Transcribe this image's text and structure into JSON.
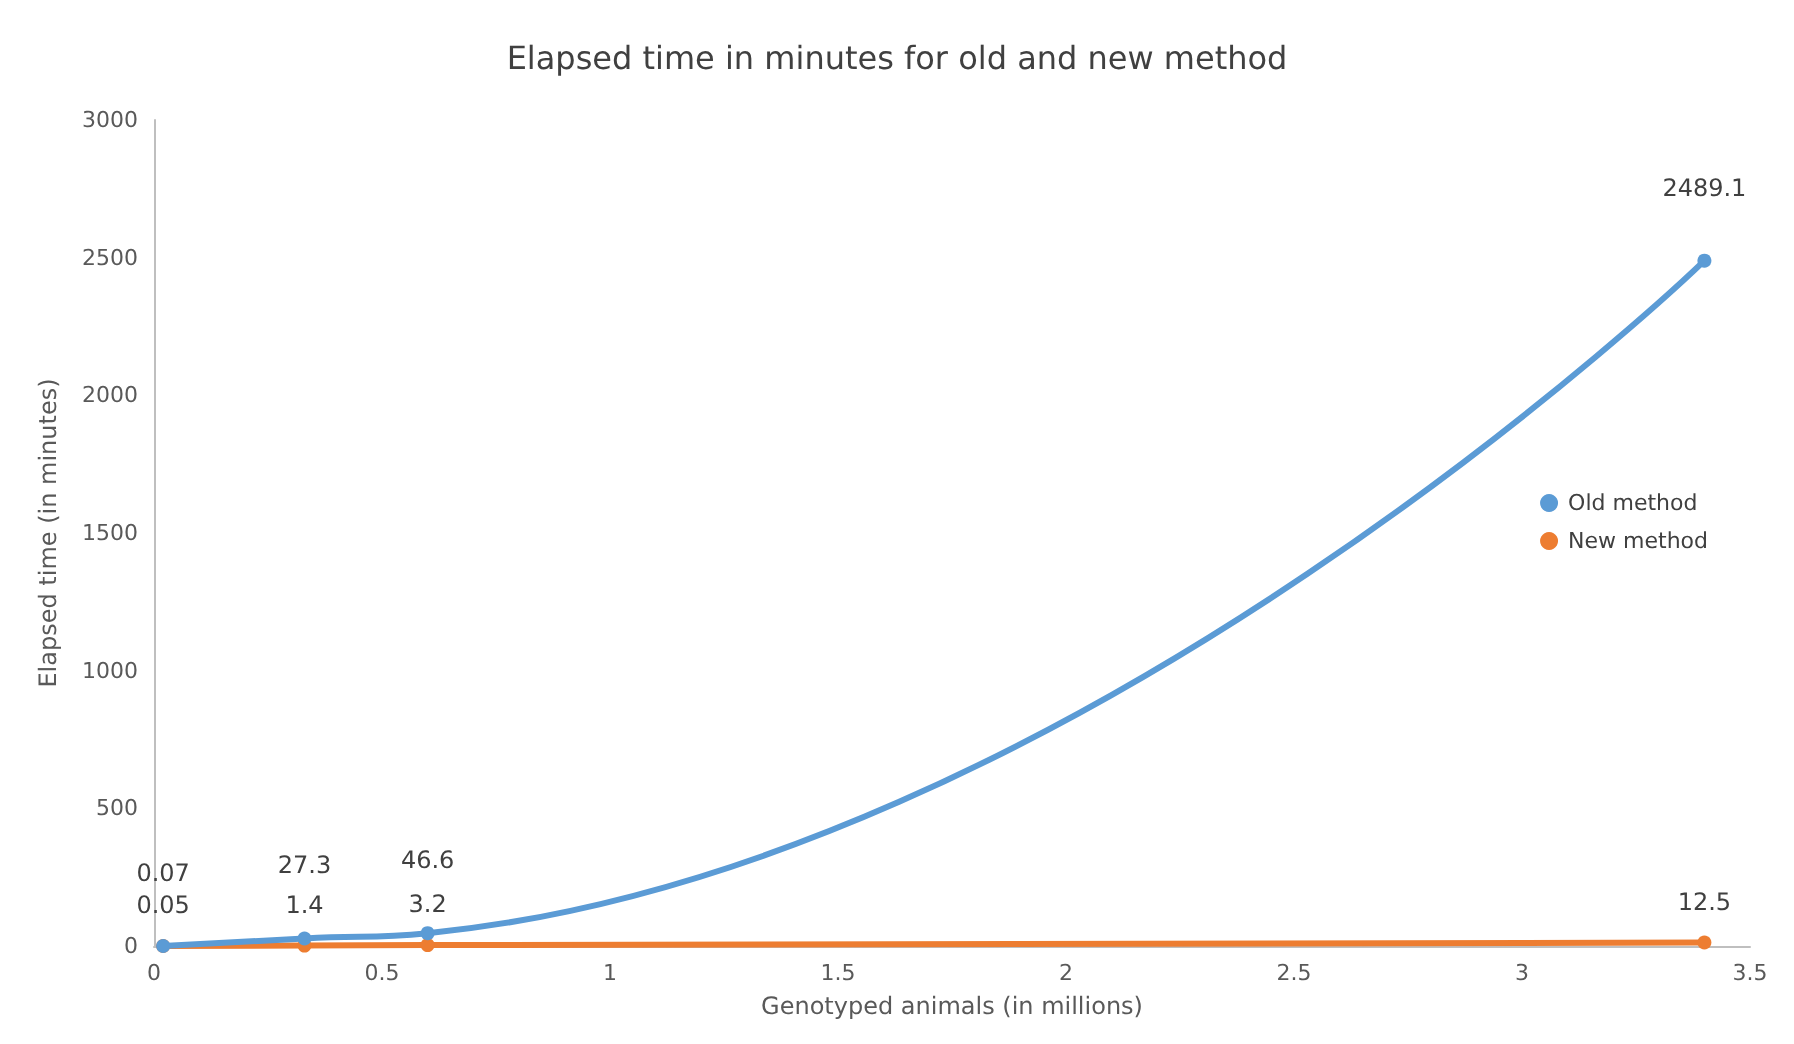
{
  "chart_data": {
    "type": "line",
    "title": "Elapsed time in minutes for old and new method",
    "xlabel": "Genotyped animals (in millions)",
    "ylabel": "Elapsed time (in minutes)",
    "x": [
      0.02,
      0.33,
      0.6,
      3.4
    ],
    "series": [
      {
        "name": "Old method",
        "color": "#5b9bd5",
        "values": [
          0.07,
          27.3,
          46.6,
          2489.1
        ]
      },
      {
        "name": "New method",
        "color": "#ed7d31",
        "values": [
          0.05,
          1.4,
          3.2,
          12.5
        ]
      }
    ],
    "xlim": [
      0,
      3.5
    ],
    "xticks": [
      0,
      0.5,
      1,
      1.5,
      2,
      2.5,
      3,
      3.5
    ],
    "ylim": [
      0,
      3000
    ],
    "yticks": [
      0,
      500,
      1000,
      1500,
      2000,
      2500,
      3000
    ],
    "data_labels": true,
    "legend": "right",
    "grid": false,
    "marker": "circle",
    "line_style": "solid"
  }
}
